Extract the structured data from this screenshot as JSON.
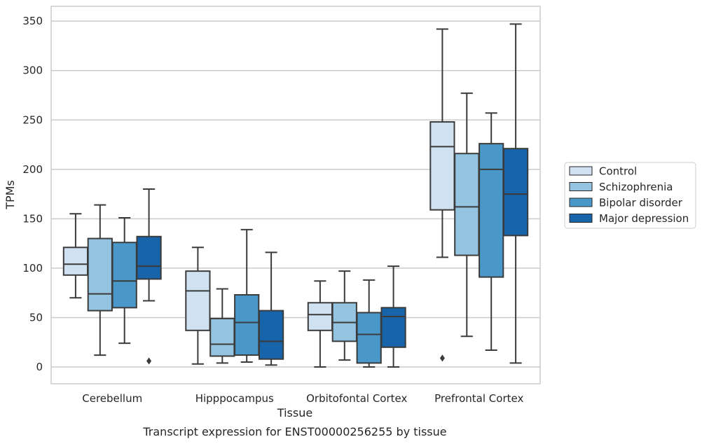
{
  "chart_data": {
    "type": "box",
    "xlabel": "Tissue",
    "ylabel": "TPMs",
    "caption": "Transcript expression for ENST00000256255 by tissue",
    "ylim": [
      -17,
      365
    ],
    "yticks": [
      0,
      50,
      100,
      150,
      200,
      250,
      300,
      350
    ],
    "grid": "horizontal",
    "legend_position": "right",
    "categories": [
      "Cerebellum",
      "Hipppocampus",
      "Orbitofontal Cortex",
      "Prefrontal Cortex"
    ],
    "series": [
      {
        "name": "Control",
        "color": "#d0e1f2",
        "boxes": [
          {
            "whisker_low": 70,
            "q1": 93,
            "median": 104,
            "q3": 121,
            "whisker_high": 155,
            "outliers": []
          },
          {
            "whisker_low": 3,
            "q1": 37,
            "median": 77,
            "q3": 97,
            "whisker_high": 121,
            "outliers": []
          },
          {
            "whisker_low": 0,
            "q1": 37,
            "median": 53,
            "q3": 65,
            "whisker_high": 87,
            "outliers": []
          },
          {
            "whisker_low": 111,
            "q1": 159,
            "median": 223,
            "q3": 248,
            "whisker_high": 342,
            "outliers": [
              9
            ]
          }
        ]
      },
      {
        "name": "Schizophrenia",
        "color": "#94c4df",
        "boxes": [
          {
            "whisker_low": 12,
            "q1": 57,
            "median": 74,
            "q3": 130,
            "whisker_high": 164,
            "outliers": []
          },
          {
            "whisker_low": 4,
            "q1": 11,
            "median": 23,
            "q3": 49,
            "whisker_high": 79,
            "outliers": []
          },
          {
            "whisker_low": 7,
            "q1": 26,
            "median": 45,
            "q3": 65,
            "whisker_high": 97,
            "outliers": []
          },
          {
            "whisker_low": 31,
            "q1": 113,
            "median": 162,
            "q3": 216,
            "whisker_high": 277,
            "outliers": []
          }
        ]
      },
      {
        "name": "Bipolar disorder",
        "color": "#4a98c9",
        "boxes": [
          {
            "whisker_low": 24,
            "q1": 60,
            "median": 87,
            "q3": 126,
            "whisker_high": 151,
            "outliers": []
          },
          {
            "whisker_low": 5,
            "q1": 12,
            "median": 45,
            "q3": 73,
            "whisker_high": 139,
            "outliers": []
          },
          {
            "whisker_low": 0,
            "q1": 4,
            "median": 33,
            "q3": 55,
            "whisker_high": 88,
            "outliers": []
          },
          {
            "whisker_low": 17,
            "q1": 91,
            "median": 200,
            "q3": 226,
            "whisker_high": 257,
            "outliers": []
          }
        ]
      },
      {
        "name": "Major depression",
        "color": "#1764ab",
        "boxes": [
          {
            "whisker_low": 67,
            "q1": 89,
            "median": 102,
            "q3": 132,
            "whisker_high": 180,
            "outliers": [
              6
            ]
          },
          {
            "whisker_low": 2,
            "q1": 8,
            "median": 26,
            "q3": 57,
            "whisker_high": 116,
            "outliers": []
          },
          {
            "whisker_low": 0,
            "q1": 20,
            "median": 51,
            "q3": 60,
            "whisker_high": 102,
            "outliers": []
          },
          {
            "whisker_low": 4,
            "q1": 133,
            "median": 175,
            "q3": 221,
            "whisker_high": 347,
            "outliers": []
          }
        ]
      }
    ]
  }
}
